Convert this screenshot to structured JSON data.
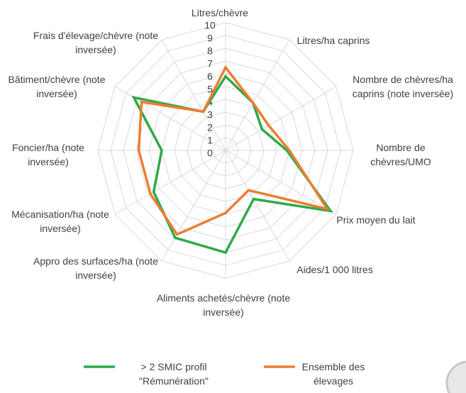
{
  "chart_data": {
    "type": "radar",
    "categories": [
      "Litres/chèvre",
      "Litres/ha caprins",
      "Nombre de chèvres/ha caprins (note inversée)",
      "Nombre de chèvres/UMO",
      "Prix moyen du lait",
      "Aides/1 000 litres",
      "Aliments achetés/chèvre (note inversée)",
      "Appro des surfaces/ha (note inversée)",
      "Mécanisation/ha (note inversée)",
      "Foncier/ha (note inversée)",
      "Bâtiment/chèvre (note inversée)",
      "Frais d'élevage/chèvre (note inversée)"
    ],
    "series": [
      {
        "name": "> 2 SMIC profil \"Rémunération\"",
        "color": "#2eaa4a",
        "values": [
          5.8,
          4.3,
          3.3,
          4.8,
          9.5,
          4.4,
          8.0,
          7.9,
          6.5,
          5.0,
          8.3,
          3.5
        ]
      },
      {
        "name": "Ensemble des élevages",
        "color": "#ed7d31",
        "values": [
          6.5,
          4.3,
          3.9,
          5.0,
          9.2,
          3.6,
          4.9,
          7.6,
          6.8,
          6.8,
          7.6,
          3.5
        ]
      }
    ],
    "ylim": [
      0,
      10
    ],
    "yticks": [
      0,
      1,
      2,
      3,
      4,
      5,
      6,
      7,
      8,
      9,
      10
    ],
    "grid": true,
    "legend": "bottom"
  }
}
